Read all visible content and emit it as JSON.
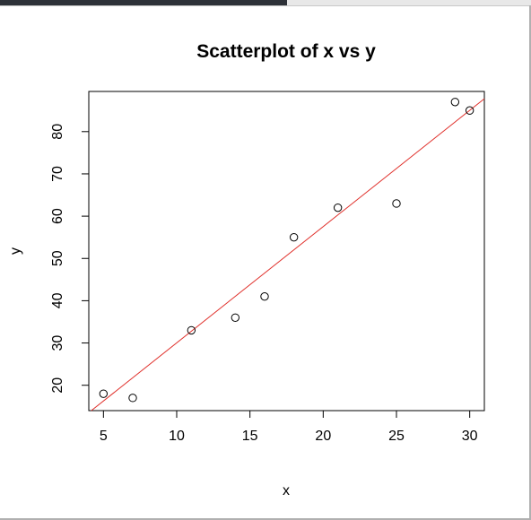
{
  "chart_data": {
    "type": "scatter",
    "title": "Scatterplot of x vs y",
    "xlabel": "x",
    "ylabel": "y",
    "xlim": [
      4.0,
      31.0
    ],
    "ylim": [
      14.0,
      89.5
    ],
    "xticks": [
      5,
      10,
      15,
      20,
      25,
      30
    ],
    "yticks": [
      20,
      30,
      40,
      50,
      60,
      70,
      80
    ],
    "points": [
      {
        "x": 5,
        "y": 18
      },
      {
        "x": 7,
        "y": 17
      },
      {
        "x": 11,
        "y": 33
      },
      {
        "x": 14,
        "y": 36
      },
      {
        "x": 16,
        "y": 41
      },
      {
        "x": 18,
        "y": 55
      },
      {
        "x": 21,
        "y": 62
      },
      {
        "x": 25,
        "y": 63
      },
      {
        "x": 29,
        "y": 87
      },
      {
        "x": 30,
        "y": 85
      }
    ],
    "fit_line": {
      "color": "#e0302b",
      "intercept": 2.53,
      "slope": 2.75
    },
    "grid": false,
    "point_style": "open-circle",
    "colors": {
      "points": "#000000",
      "axis": "#000000",
      "fit": "#e0302b"
    }
  }
}
